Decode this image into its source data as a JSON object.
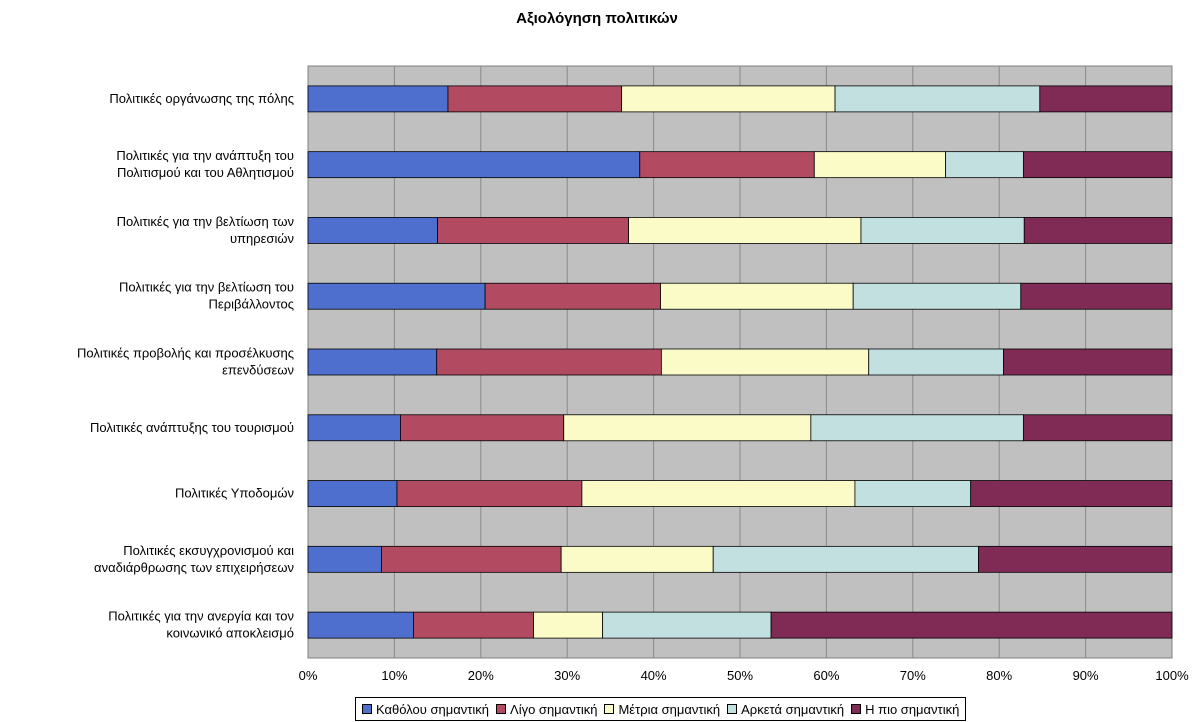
{
  "chart_data": {
    "type": "bar",
    "orientation": "horizontal",
    "stacked": "percent",
    "title": "Αξιολόγηση πολιτικών",
    "xlabel": "",
    "ylabel": "",
    "xlim": [
      0,
      100
    ],
    "x_ticks": [
      "0%",
      "10%",
      "20%",
      "30%",
      "40%",
      "50%",
      "60%",
      "70%",
      "80%",
      "90%",
      "100%"
    ],
    "grid": true,
    "legend_position": "bottom",
    "categories": [
      [
        "Πολιτικές οργάνωσης της πόλης"
      ],
      [
        "Πολιτικές για την ανάπτυξη του",
        "Πολιτισμού και του Αθλητισμού"
      ],
      [
        "Πολιτικές για την βελτίωση των",
        "υπηρεσιών"
      ],
      [
        "Πολιτικές για την βελτίωση του",
        "Περιβάλλοντος"
      ],
      [
        "Πολιτικές προβολής και προσέλκυσης",
        "επενδύσεων"
      ],
      [
        "Πολιτικές ανάπτυξης του τουρισμού"
      ],
      [
        "Πολιτικές Υποδομών"
      ],
      [
        "Πολιτικές εκσυγχρονισμού και",
        "αναδιάρθρωσης των επιχειρήσεων"
      ],
      [
        "Πολιτικές για την ανεργία και τον",
        "κοινωνικό αποκλεισμό"
      ]
    ],
    "series": [
      {
        "name": "Καθόλου σημαντική",
        "color": "#4f6fcf",
        "values": [
          16.2,
          38.4,
          15.0,
          20.5,
          14.9,
          10.7,
          10.3,
          8.5,
          12.2
        ]
      },
      {
        "name": "Λίγο σημαντική",
        "color": "#b24a62",
        "values": [
          20.1,
          20.2,
          22.1,
          20.3,
          26.0,
          18.9,
          21.4,
          20.8,
          13.9
        ]
      },
      {
        "name": "Μέτρια σημαντική",
        "color": "#fbfbc8",
        "values": [
          24.7,
          15.2,
          26.9,
          22.3,
          24.0,
          28.6,
          31.6,
          17.6,
          8.0
        ]
      },
      {
        "name": "Αρκετά σημαντική",
        "color": "#c2e0e0",
        "values": [
          23.7,
          9.0,
          18.9,
          19.4,
          15.6,
          24.6,
          13.4,
          30.7,
          19.5
        ]
      },
      {
        "name": "Η πιο σημαντική",
        "color": "#7f2b56",
        "values": [
          15.3,
          17.2,
          17.1,
          17.5,
          19.5,
          17.2,
          23.3,
          22.4,
          46.4
        ]
      }
    ]
  }
}
